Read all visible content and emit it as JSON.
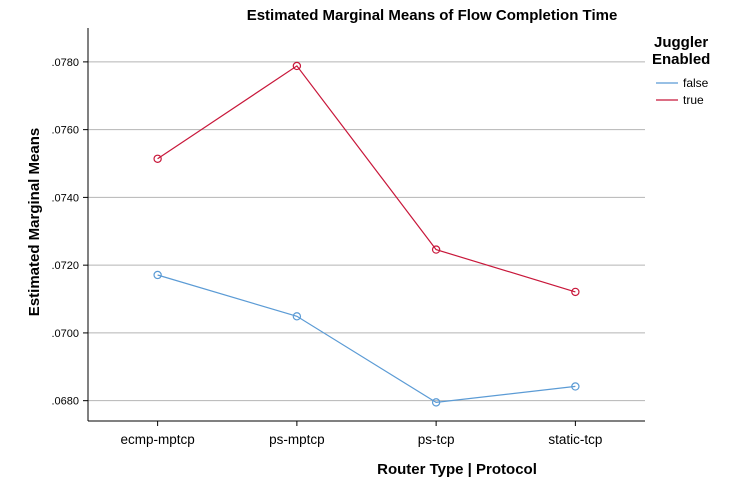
{
  "chart_data": {
    "type": "line",
    "title": "Estimated Marginal Means of Flow Completion Time",
    "xlabel": "Router Type | Protocol",
    "ylabel": "Estimated Marginal Means",
    "categories": [
      "ecmp-mptcp",
      "ps-mptcp",
      "ps-tcp",
      "static-tcp"
    ],
    "ylim": [
      0.0674,
      0.079
    ],
    "yticks": [
      0.068,
      0.07,
      0.072,
      0.074,
      0.076,
      0.078
    ],
    "ytick_labels": [
      ".0680",
      ".0700",
      ".0720",
      ".0740",
      ".0760",
      ".0780"
    ],
    "grid": true,
    "legend": {
      "title_line1": "Juggler",
      "title_line2": "Enabled",
      "position": "right"
    },
    "series": [
      {
        "name": "false",
        "color": "#5b9bd5",
        "values": [
          0.07171,
          0.07049,
          0.06795,
          0.06842
        ]
      },
      {
        "name": "true",
        "color": "#c8173a",
        "values": [
          0.07514,
          0.07788,
          0.07246,
          0.07121
        ]
      }
    ]
  }
}
